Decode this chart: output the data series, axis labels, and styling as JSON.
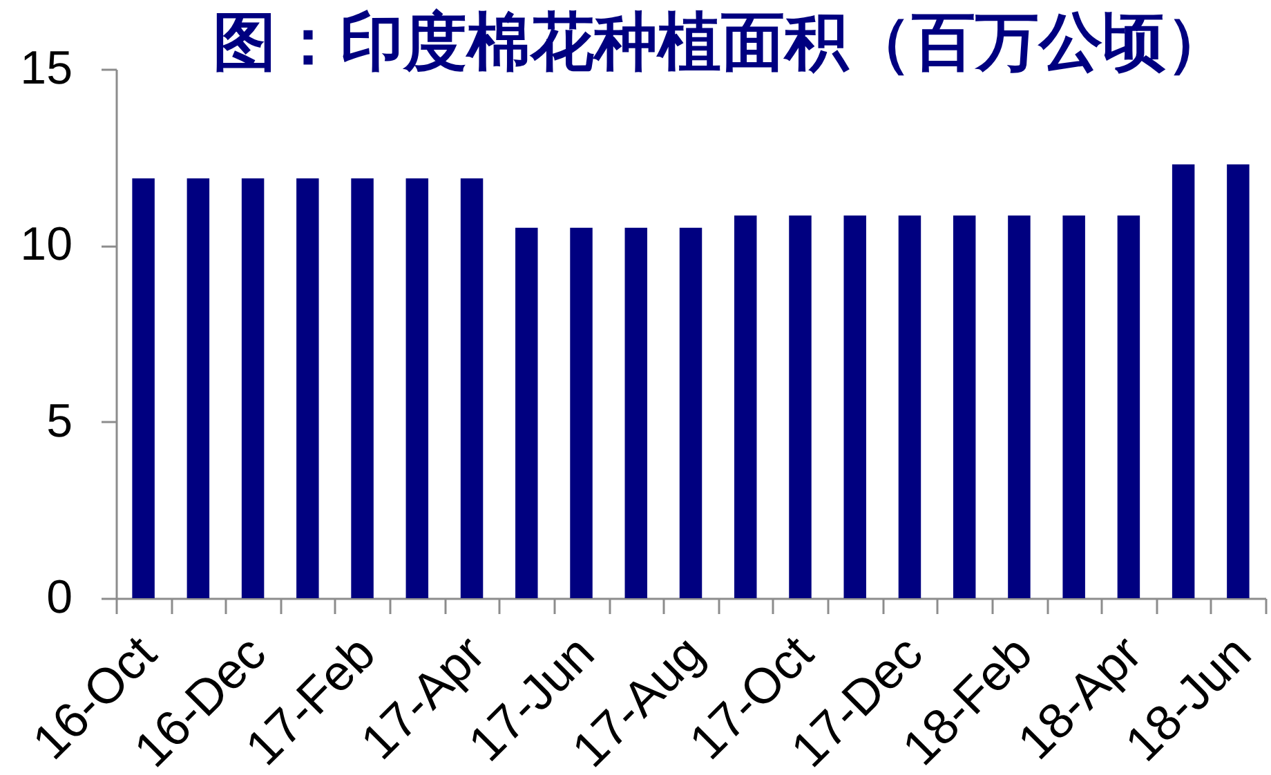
{
  "chart_data": {
    "type": "bar",
    "title": "图：印度棉花种植面积（百万公顷）",
    "categories": [
      "16-Oct",
      null,
      "16-Dec",
      null,
      "17-Feb",
      null,
      "17-Apr",
      null,
      "17-Jun",
      null,
      "17-Aug",
      null,
      "17-Oct",
      null,
      "17-Dec",
      null,
      "18-Feb",
      null,
      "18-Apr",
      null,
      "18-Jun"
    ],
    "values": [
      11.9,
      11.9,
      11.9,
      11.9,
      11.9,
      11.9,
      11.9,
      10.5,
      10.5,
      10.5,
      10.5,
      10.85,
      10.85,
      10.85,
      10.85,
      10.85,
      10.85,
      10.85,
      10.85,
      12.3,
      12.3
    ],
    "color": "#000080",
    "ylim": [
      0,
      15
    ],
    "yticks": [
      0,
      5,
      10,
      15
    ],
    "grid": false
  }
}
